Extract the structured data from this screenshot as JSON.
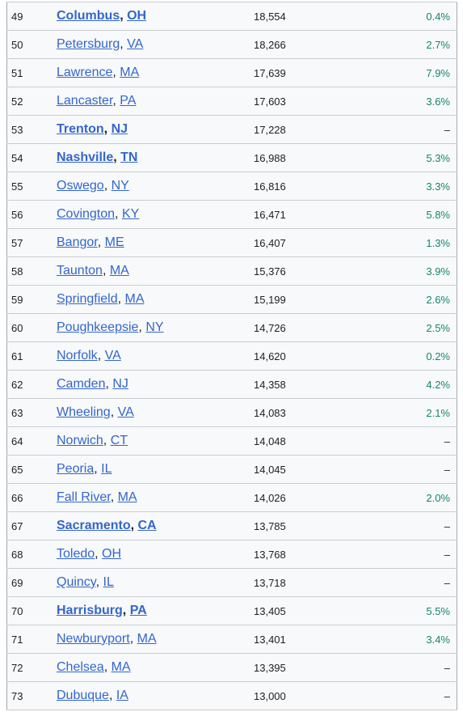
{
  "separator": ", ",
  "table": {
    "rows": [
      {
        "rank": "49",
        "city": "Columbus",
        "state": "OH",
        "bold": true,
        "population": "18,554",
        "change": "0.4%"
      },
      {
        "rank": "50",
        "city": "Petersburg",
        "state": "VA",
        "bold": false,
        "population": "18,266",
        "change": "2.7%"
      },
      {
        "rank": "51",
        "city": "Lawrence",
        "state": "MA",
        "bold": false,
        "population": "17,639",
        "change": "7.9%"
      },
      {
        "rank": "52",
        "city": "Lancaster",
        "state": "PA",
        "bold": false,
        "population": "17,603",
        "change": "3.6%"
      },
      {
        "rank": "53",
        "city": "Trenton",
        "state": "NJ",
        "bold": true,
        "population": "17,228",
        "change": "–"
      },
      {
        "rank": "54",
        "city": "Nashville",
        "state": "TN",
        "bold": true,
        "population": "16,988",
        "change": "5.3%"
      },
      {
        "rank": "55",
        "city": "Oswego",
        "state": "NY",
        "bold": false,
        "population": "16,816",
        "change": "3.3%"
      },
      {
        "rank": "56",
        "city": "Covington",
        "state": "KY",
        "bold": false,
        "population": "16,471",
        "change": "5.8%"
      },
      {
        "rank": "57",
        "city": "Bangor",
        "state": "ME",
        "bold": false,
        "population": "16,407",
        "change": "1.3%"
      },
      {
        "rank": "58",
        "city": "Taunton",
        "state": "MA",
        "bold": false,
        "population": "15,376",
        "change": "3.9%"
      },
      {
        "rank": "59",
        "city": "Springfield",
        "state": "MA",
        "bold": false,
        "population": "15,199",
        "change": "2.6%"
      },
      {
        "rank": "60",
        "city": "Poughkeepsie",
        "state": "NY",
        "bold": false,
        "population": "14,726",
        "change": "2.5%"
      },
      {
        "rank": "61",
        "city": "Norfolk",
        "state": "VA",
        "bold": false,
        "population": "14,620",
        "change": "0.2%"
      },
      {
        "rank": "62",
        "city": "Camden",
        "state": "NJ",
        "bold": false,
        "population": "14,358",
        "change": "4.2%"
      },
      {
        "rank": "63",
        "city": "Wheeling",
        "state": "VA",
        "bold": false,
        "population": "14,083",
        "change": "2.1%"
      },
      {
        "rank": "64",
        "city": "Norwich",
        "state": "CT",
        "bold": false,
        "population": "14,048",
        "change": "–"
      },
      {
        "rank": "65",
        "city": "Peoria",
        "state": "IL",
        "bold": false,
        "population": "14,045",
        "change": "–"
      },
      {
        "rank": "66",
        "city": "Fall River",
        "state": "MA",
        "bold": false,
        "population": "14,026",
        "change": "2.0%"
      },
      {
        "rank": "67",
        "city": "Sacramento",
        "state": "CA",
        "bold": true,
        "population": "13,785",
        "change": "–"
      },
      {
        "rank": "68",
        "city": "Toledo",
        "state": "OH",
        "bold": false,
        "population": "13,768",
        "change": "–"
      },
      {
        "rank": "69",
        "city": "Quincy",
        "state": "IL",
        "bold": false,
        "population": "13,718",
        "change": "–"
      },
      {
        "rank": "70",
        "city": "Harrisburg",
        "state": "PA",
        "bold": true,
        "population": "13,405",
        "change": "5.5%"
      },
      {
        "rank": "71",
        "city": "Newburyport",
        "state": "MA",
        "bold": false,
        "population": "13,401",
        "change": "3.4%"
      },
      {
        "rank": "72",
        "city": "Chelsea",
        "state": "MA",
        "bold": false,
        "population": "13,395",
        "change": "–"
      },
      {
        "rank": "73",
        "city": "Dubuque",
        "state": "IA",
        "bold": false,
        "population": "13,000",
        "change": "–"
      }
    ]
  }
}
